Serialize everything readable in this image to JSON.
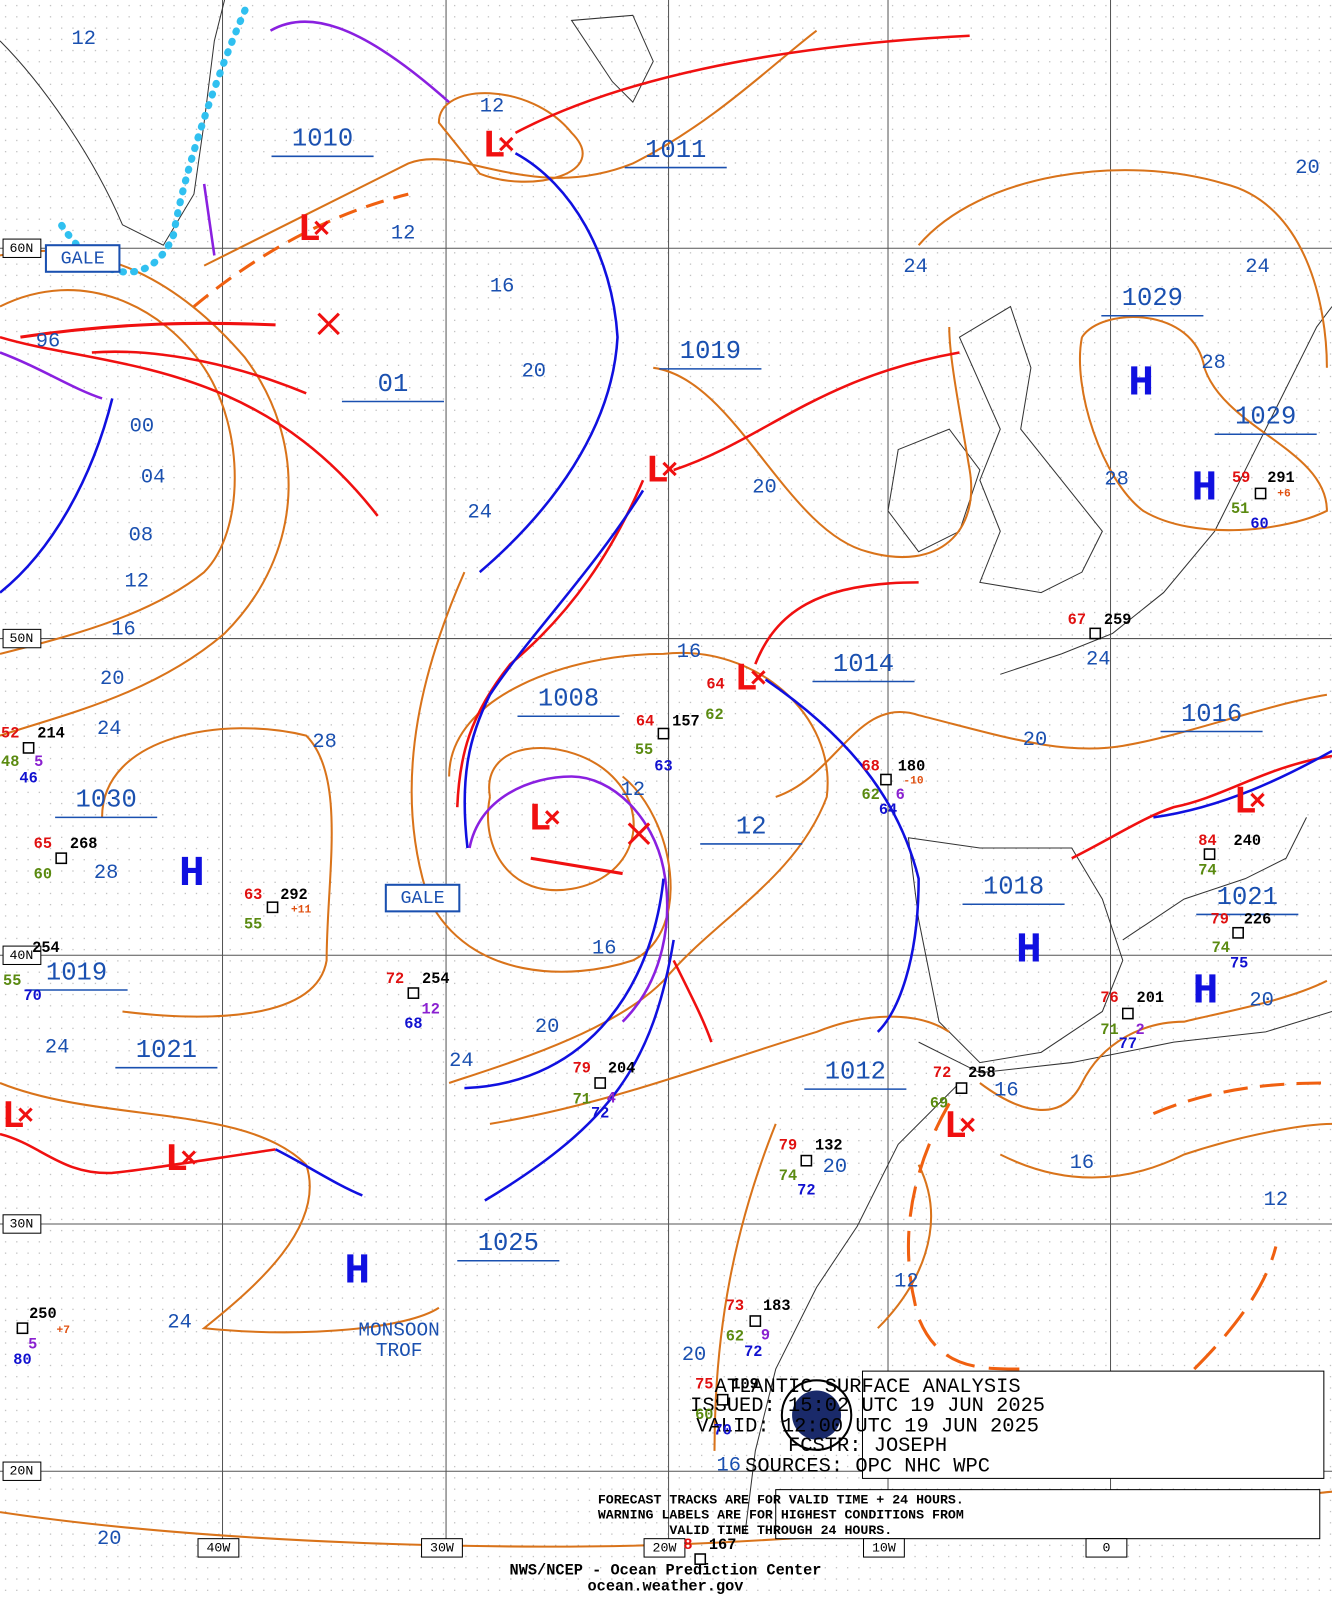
{
  "title_box": [
    "ATLANTIC SURFACE ANALYSIS",
    "ISSUED: 15:02 UTC 19 JUN 2025",
    "VALID:  12:00 UTC 19 JUN 2025",
    "FCSTR:  JOSEPH",
    "SOURCES: OPC NHC WPC"
  ],
  "note": [
    "FORECAST TRACKS ARE FOR VALID TIME + 24 HOURS.",
    "WARNING LABELS ARE FOR HIGHEST CONDITIONS FROM",
    "VALID TIME THROUGH 24 HOURS."
  ],
  "credit": [
    "NWS/NCEP - Ocean Prediction Center",
    "ocean.weather.gov"
  ],
  "lat_labels": [
    "60N",
    "50N",
    "40N",
    "30N",
    "20N"
  ],
  "lon_labels": [
    "40W",
    "30W",
    "20W",
    "10W",
    "0"
  ],
  "pressure_labels": [
    "1010",
    "1011",
    "1019",
    "01",
    "1029",
    "1029",
    "1008",
    "1014",
    "1016",
    "1030",
    "12",
    "1018",
    "1021",
    "1019",
    "1021",
    "1012",
    "1025"
  ],
  "highs": [
    "H",
    "H",
    "H",
    "H",
    "H",
    "H"
  ],
  "lows": [
    "L",
    "L",
    "L",
    "L",
    "L",
    "L",
    "L",
    "L",
    "L"
  ],
  "isobar_labels": [
    "12",
    "12",
    "12",
    "16",
    "20",
    "96",
    "00",
    "04",
    "08",
    "12",
    "16",
    "20",
    "24",
    "28",
    "28",
    "24",
    "20",
    "24",
    "28",
    "28",
    "24",
    "20",
    "16",
    "24",
    "20",
    "12",
    "16",
    "20",
    "24",
    "24",
    "24",
    "20",
    "16",
    "16",
    "12",
    "12",
    "20",
    "20",
    "16",
    "20"
  ],
  "warnings": [
    "GALE",
    "GALE"
  ],
  "annotations": [
    "MONSOON",
    "TROF"
  ],
  "station_labels": [
    "67",
    "259",
    "64",
    "157",
    "55",
    "63",
    "64",
    "62",
    "68",
    "180",
    "62",
    "6",
    "64",
    "-10",
    "52",
    "214",
    "48",
    "5",
    "46",
    "65",
    "268",
    "60",
    "63",
    "292",
    "55",
    "+11",
    "72",
    "254",
    "12",
    "68",
    "79",
    "204",
    "71",
    "4",
    "72",
    "79",
    "132",
    "74",
    "72",
    "72",
    "258",
    "69",
    "76",
    "201",
    "71",
    "2",
    "77",
    "59",
    "291",
    "51",
    "60",
    "+6",
    "84",
    "240",
    "74",
    "79",
    "226",
    "74",
    "75",
    "73",
    "183",
    "62",
    "9",
    "72",
    "75",
    "109",
    "60",
    "70",
    "250",
    "5",
    "80",
    "+7",
    "8",
    "167",
    "254",
    "55",
    "70"
  ]
}
